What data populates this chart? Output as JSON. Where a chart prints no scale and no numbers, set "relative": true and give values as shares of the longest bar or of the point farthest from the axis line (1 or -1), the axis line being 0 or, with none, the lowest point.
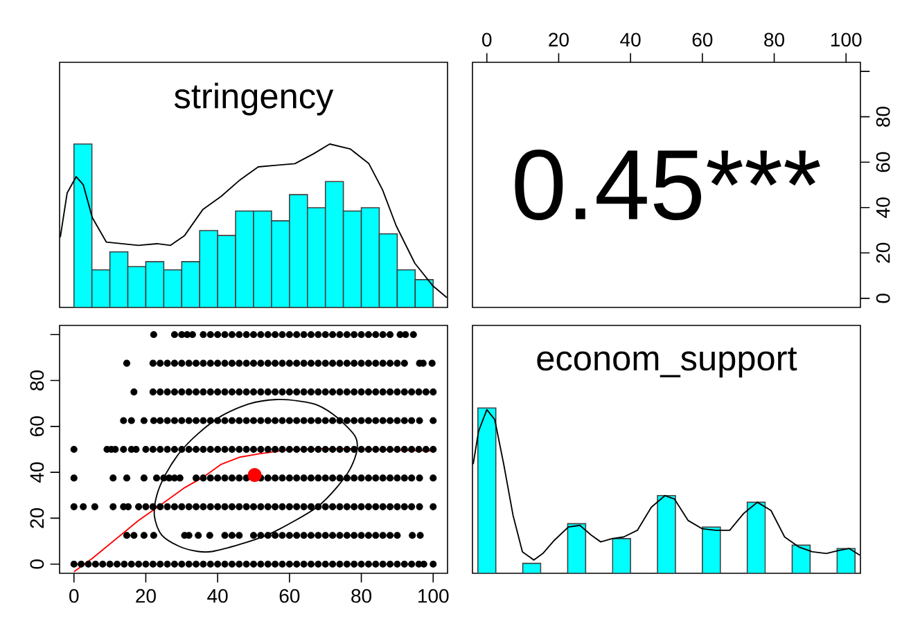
{
  "chart_data": [
    {
      "type": "histogram",
      "title": "stringency",
      "relative": true,
      "xlim": [
        -4,
        104
      ],
      "tick_labels": false,
      "series": [
        {
          "type": "histogram",
          "color": "#00ffff",
          "bins": [
            0,
            5,
            10,
            15,
            20,
            25,
            30,
            35,
            40,
            45,
            50,
            55,
            60,
            65,
            70,
            75,
            80,
            85,
            90,
            95,
            100
          ],
          "values": [
            1,
            0.23,
            0.34,
            0.25,
            0.28,
            0.23,
            0.28,
            0.47,
            0.44,
            0.59,
            0.59,
            0.53,
            0.69,
            0.61,
            0.77,
            0.59,
            0.61,
            0.45,
            0.23,
            0.17
          ]
        },
        {
          "type": "line",
          "color": "#000000",
          "x": [
            -3.8,
            -1.9,
            0.6,
            2.6,
            5.1,
            9.0,
            17.9,
            23.1,
            26.9,
            30.8,
            35.9,
            41.0,
            46.2,
            51.3,
            56.4,
            61.5,
            66.7,
            71.2,
            76.9,
            82.1,
            85.9,
            89.7,
            94.9,
            100,
            103.8
          ],
          "values": [
            0.43,
            0.7,
            0.8,
            0.75,
            0.55,
            0.4,
            0.38,
            0.39,
            0.38,
            0.44,
            0.6,
            0.68,
            0.78,
            0.86,
            0.87,
            0.88,
            0.94,
            1,
            0.97,
            0.88,
            0.72,
            0.5,
            0.27,
            0.13,
            0.06
          ]
        }
      ]
    },
    {
      "type": "scatter",
      "annotations": [
        "0.45***"
      ],
      "xlim": [
        -4,
        104
      ],
      "xticks": [
        0,
        20,
        40,
        60,
        80,
        100
      ],
      "ylim": [
        -4,
        104
      ],
      "yticks": [
        0,
        20,
        40,
        60,
        80,
        {
          "value": 100,
          "label": null
        }
      ]
    },
    {
      "type": "scatter",
      "marker": "circle",
      "xlim": [
        -4,
        104
      ],
      "ylim": [
        -4,
        104
      ],
      "xticks": [
        0,
        20,
        40,
        60,
        80,
        100
      ],
      "yticks": [
        0,
        20,
        40,
        60,
        80,
        {
          "value": 100,
          "label": null
        }
      ],
      "series": [
        {
          "type": "scatter",
          "color": "#000000",
          "x": [
            22.2,
            28,
            30,
            31.5,
            33,
            36,
            38,
            40,
            42,
            44,
            46,
            48,
            50,
            52,
            54,
            56,
            58,
            60,
            62,
            64,
            66,
            68,
            70,
            72,
            74,
            76,
            78,
            80,
            82,
            84,
            86,
            88,
            90.8,
            92.3,
            94.5
          ],
          "values": [
            100,
            100,
            100,
            100,
            100,
            100,
            100,
            100,
            100,
            100,
            100,
            100,
            100,
            100,
            100,
            100,
            100,
            100,
            100,
            100,
            100,
            100,
            100,
            100,
            100,
            100,
            100,
            100,
            100,
            100,
            100,
            100,
            100,
            100,
            100
          ]
        },
        {
          "type": "scatter",
          "color": "#000000",
          "x": [
            14.7,
            22,
            24,
            26,
            28,
            30,
            32,
            34,
            36,
            38,
            40,
            42,
            44,
            46,
            48,
            50,
            52,
            54,
            56,
            58,
            60,
            62,
            64,
            66,
            68,
            70,
            72,
            74,
            76,
            78,
            80,
            82,
            84,
            86,
            88,
            90,
            92,
            96.2,
            97.2,
            99.7
          ],
          "values": [
            87.5,
            87.5,
            87.5,
            87.5,
            87.5,
            87.5,
            87.5,
            87.5,
            87.5,
            87.5,
            87.5,
            87.5,
            87.5,
            87.5,
            87.5,
            87.5,
            87.5,
            87.5,
            87.5,
            87.5,
            87.5,
            87.5,
            87.5,
            87.5,
            87.5,
            87.5,
            87.5,
            87.5,
            87.5,
            87.5,
            87.5,
            87.5,
            87.5,
            87.5,
            87.5,
            87.5,
            87.5,
            87.5,
            87.5,
            87.5
          ]
        },
        {
          "type": "scatter",
          "color": "#000000",
          "x": [
            16.7,
            22,
            24,
            26,
            28,
            30,
            32,
            34,
            36,
            38,
            40,
            42,
            44,
            46,
            48,
            50,
            52,
            54,
            56,
            58,
            60,
            62,
            64,
            66,
            68,
            70,
            72,
            74,
            76,
            78,
            80,
            82,
            84,
            86,
            88,
            90,
            92,
            94,
            96,
            98,
            100
          ],
          "values": [
            75,
            75,
            75,
            75,
            75,
            75,
            75,
            75,
            75,
            75,
            75,
            75,
            75,
            75,
            75,
            75,
            75,
            75,
            75,
            75,
            75,
            75,
            75,
            75,
            75,
            75,
            75,
            75,
            75,
            75,
            75,
            75,
            75,
            75,
            75,
            75,
            75,
            75,
            75,
            75,
            75
          ]
        },
        {
          "type": "scatter",
          "color": "#000000",
          "x": [
            13.8,
            16,
            19.5,
            22.2,
            24,
            26,
            28,
            30,
            32,
            34,
            36,
            38,
            40,
            42,
            44,
            46,
            48,
            50,
            52,
            54,
            56,
            58,
            60,
            62,
            64,
            66,
            68,
            70,
            72,
            74,
            76,
            78,
            80,
            82,
            84,
            86,
            88,
            90,
            92,
            94,
            96.2,
            100
          ],
          "values": [
            62.5,
            62.5,
            62.5,
            62.5,
            62.5,
            62.5,
            62.5,
            62.5,
            62.5,
            62.5,
            62.5,
            62.5,
            62.5,
            62.5,
            62.5,
            62.5,
            62.5,
            62.5,
            62.5,
            62.5,
            62.5,
            62.5,
            62.5,
            62.5,
            62.5,
            62.5,
            62.5,
            62.5,
            62.5,
            62.5,
            62.5,
            62.5,
            62.5,
            62.5,
            62.5,
            62.5,
            62.5,
            62.5,
            62.5,
            62.5,
            62.5,
            62.5
          ]
        },
        {
          "type": "scatter",
          "color": "#000000",
          "x": [
            0,
            9.2,
            10.4,
            11.5,
            13.8,
            16,
            17.3,
            20,
            22,
            24,
            26,
            28,
            30,
            32,
            34,
            36,
            38,
            40,
            42,
            44,
            46,
            48,
            50,
            52,
            54,
            56,
            58,
            60,
            62,
            64,
            66,
            68,
            70,
            72,
            74,
            76,
            78,
            80,
            82,
            84,
            86,
            88,
            90,
            92,
            94,
            96,
            98,
            100
          ],
          "values": [
            50,
            50,
            50,
            50,
            50,
            50,
            50,
            50,
            50,
            50,
            50,
            50,
            50,
            50,
            50,
            50,
            50,
            50,
            50,
            50,
            50,
            50,
            50,
            50,
            50,
            50,
            50,
            50,
            50,
            50,
            50,
            50,
            50,
            50,
            50,
            50,
            50,
            50,
            50,
            50,
            50,
            50,
            50,
            50,
            50,
            50,
            50,
            50
          ]
        },
        {
          "type": "scatter",
          "color": "#000000",
          "x": [
            0,
            10.9,
            14.7,
            19.5,
            23,
            25,
            26.5,
            28,
            29.5,
            34,
            36,
            38,
            40,
            42,
            44,
            46,
            48,
            52,
            54,
            56,
            58,
            60,
            62,
            64,
            66,
            68,
            70,
            72,
            74,
            76,
            78,
            80,
            82,
            84,
            86,
            88,
            90,
            92,
            94,
            96.2,
            100
          ],
          "values": [
            37.5,
            37.5,
            37.5,
            37.5,
            37.5,
            37.5,
            37.5,
            37.5,
            37.5,
            37.5,
            37.5,
            37.5,
            37.5,
            37.5,
            37.5,
            37.5,
            37.5,
            37.5,
            37.5,
            37.5,
            37.5,
            37.5,
            37.5,
            37.5,
            37.5,
            37.5,
            37.5,
            37.5,
            37.5,
            37.5,
            37.5,
            37.5,
            37.5,
            37.5,
            37.5,
            37.5,
            37.5,
            37.5,
            37.5,
            37.5,
            37.5
          ]
        },
        {
          "type": "scatter",
          "color": "#000000",
          "x": [
            0,
            2.6,
            5.8,
            10.9,
            13.8,
            15.1,
            18,
            20,
            22,
            24,
            26,
            28,
            30,
            32,
            34,
            36,
            38,
            40,
            42,
            44,
            46,
            48,
            50,
            52,
            54,
            56,
            58,
            60,
            62,
            64,
            66,
            68,
            70,
            72,
            74,
            76,
            78,
            80,
            82,
            84,
            86,
            88,
            90,
            92,
            94,
            96.2,
            100
          ],
          "values": [
            25,
            25,
            25,
            25,
            25,
            25,
            25,
            25,
            25,
            25,
            25,
            25,
            25,
            25,
            25,
            25,
            25,
            25,
            25,
            25,
            25,
            25,
            25,
            25,
            25,
            25,
            25,
            25,
            25,
            25,
            25,
            25,
            25,
            25,
            25,
            25,
            25,
            25,
            25,
            25,
            25,
            25,
            25,
            25,
            25,
            25,
            25
          ]
        },
        {
          "type": "scatter",
          "color": "#000000",
          "x": [
            14.7,
            16.7,
            19.5,
            22.2,
            30.8,
            32,
            34.6,
            37.8,
            42,
            44,
            46,
            50,
            52,
            54,
            56,
            58,
            60,
            62,
            64,
            66,
            68,
            70,
            72,
            74,
            76,
            78,
            80,
            82,
            84,
            86,
            88,
            90,
            94.2,
            96.4
          ],
          "values": [
            12.5,
            12.5,
            12.5,
            12.5,
            12.5,
            12.5,
            12.5,
            12.5,
            12.5,
            12.5,
            12.5,
            12.5,
            12.5,
            12.5,
            12.5,
            12.5,
            12.5,
            12.5,
            12.5,
            12.5,
            12.5,
            12.5,
            12.5,
            12.5,
            12.5,
            12.5,
            12.5,
            12.5,
            12.5,
            12.5,
            12.5,
            12.5,
            12.5,
            12.5
          ]
        },
        {
          "type": "scatter",
          "color": "#000000",
          "x": [
            0,
            2,
            4,
            6,
            8,
            10,
            12,
            14,
            16,
            18,
            20,
            22,
            24,
            26,
            28,
            30,
            32,
            34,
            36,
            38,
            40,
            42,
            44,
            46,
            48,
            50,
            52,
            54,
            56,
            58,
            60,
            62,
            64,
            66,
            68,
            70,
            72,
            74,
            76,
            78,
            80,
            82,
            84,
            86,
            88,
            90,
            92,
            94,
            96,
            97.4,
            100
          ],
          "values": [
            0,
            0,
            0,
            0,
            0,
            0,
            0,
            0,
            0,
            0,
            0,
            0,
            0,
            0,
            0,
            0,
            0,
            0,
            0,
            0,
            0,
            0,
            0,
            0,
            0,
            0,
            0,
            0,
            0,
            0,
            0,
            0,
            0,
            0,
            0,
            0,
            0,
            0,
            0,
            0,
            0,
            0,
            0,
            0,
            0,
            0,
            0,
            0,
            0,
            0,
            0
          ]
        },
        {
          "type": "line",
          "marker": "none",
          "color": "#ff0000",
          "x": [
            0,
            5.1,
            11.5,
            17.9,
            24.4,
            30.8,
            35.9,
            41,
            46.2,
            51.3,
            59,
            66.7,
            76.9,
            89.7,
            100
          ],
          "values": [
            -3.3,
            2.5,
            10.7,
            18.9,
            26.1,
            33.3,
            37.8,
            43.5,
            46.6,
            48,
            49.7,
            50.3,
            50.3,
            49.7,
            49.3
          ]
        },
        {
          "type": "scatter",
          "color": "#ff0000",
          "x": [
            50.3
          ],
          "values": [
            38.8
          ],
          "sizes": [
            1
          ]
        }
      ]
    },
    {
      "type": "histogram",
      "title": "econom_support",
      "relative": true,
      "xlim": [
        -4,
        104
      ],
      "tick_labels": false,
      "series": [
        {
          "type": "histogram",
          "color": "#00ffff",
          "bins": [
            -2.5,
            2.5,
            10,
            15,
            22.5,
            27.5,
            35,
            40,
            47.5,
            52.5,
            60,
            65,
            72.5,
            77.5,
            85,
            90,
            97.5,
            102.5
          ],
          "values": [
            1,
            0,
            0.06,
            0,
            0.3,
            0,
            0.21,
            0,
            0.47,
            0,
            0.28,
            0,
            0.43,
            0,
            0.17,
            0,
            0.15
          ]
        },
        {
          "type": "line",
          "color": "#000000",
          "x": [
            -3.8,
            -2.3,
            0,
            2.2,
            4.7,
            7.3,
            9.9,
            13.1,
            15.6,
            18.8,
            22.7,
            25.9,
            29.1,
            31.7,
            34.9,
            38.1,
            41.9,
            45.8,
            49.6,
            52.2,
            56.0,
            59.9,
            63.7,
            67.6,
            71.4,
            75.3,
            79.1,
            82.9,
            86.8,
            90.6,
            94.5,
            98.3,
            100.9,
            103.8
          ],
          "values": [
            0.66,
            0.86,
            0.99,
            0.93,
            0.66,
            0.35,
            0.13,
            0.08,
            0.12,
            0.2,
            0.28,
            0.29,
            0.23,
            0.19,
            0.21,
            0.22,
            0.26,
            0.4,
            0.47,
            0.45,
            0.32,
            0.27,
            0.26,
            0.26,
            0.36,
            0.43,
            0.38,
            0.22,
            0.16,
            0.13,
            0.12,
            0.14,
            0.15,
            0.11
          ]
        }
      ]
    }
  ]
}
